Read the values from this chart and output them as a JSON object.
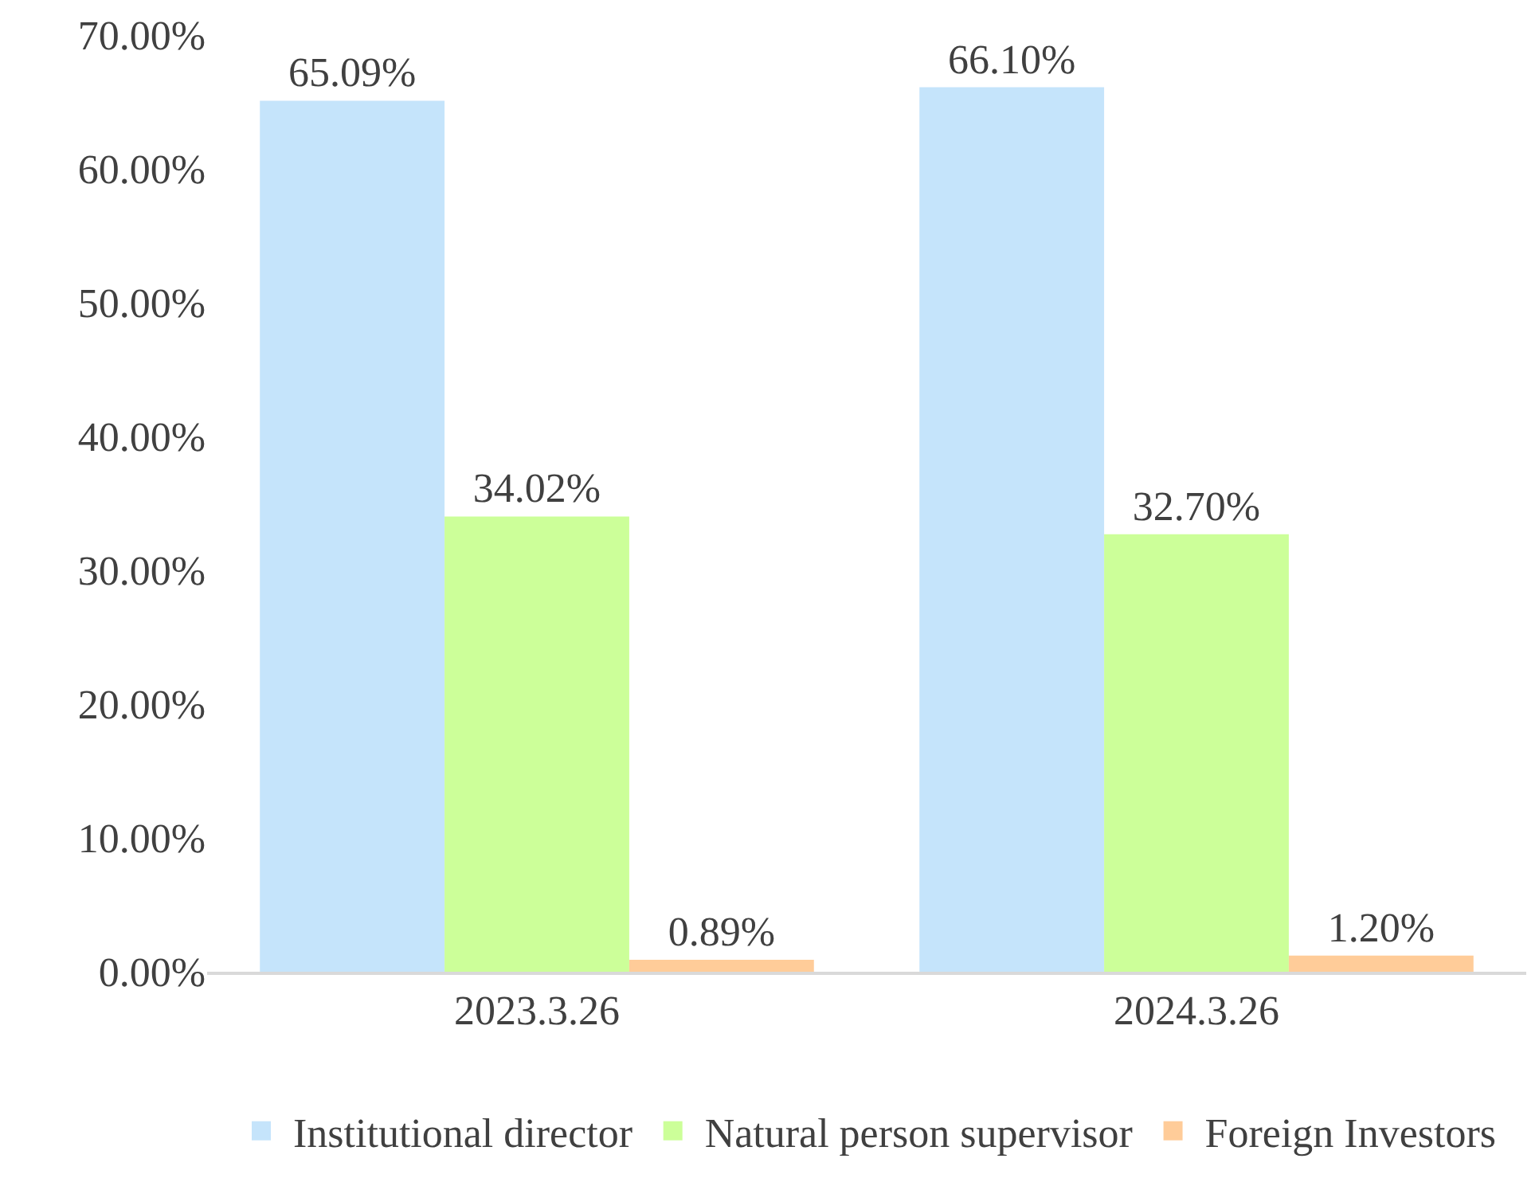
{
  "chart_data": {
    "type": "bar",
    "categories": [
      "2023.3.26",
      "2024.3.26"
    ],
    "series": [
      {
        "name": "Institutional director",
        "color": "#c5e4fb",
        "values": [
          65.09,
          66.1
        ],
        "value_labels": [
          "65.09%",
          "66.10%"
        ]
      },
      {
        "name": "Natural person supervisor",
        "color": "#ccff99",
        "values": [
          34.02,
          32.7
        ],
        "value_labels": [
          "34.02%",
          "32.70%"
        ]
      },
      {
        "name": "Foreign Investors",
        "color": "#ffcc99",
        "values": [
          0.89,
          1.2
        ],
        "value_labels": [
          "0.89%",
          "1.20%"
        ]
      }
    ],
    "ylim": [
      0,
      70
    ],
    "yticks": [
      {
        "value": 0,
        "label": "0.00%"
      },
      {
        "value": 10,
        "label": "10.00%"
      },
      {
        "value": 20,
        "label": "20.00%"
      },
      {
        "value": 30,
        "label": "30.00%"
      },
      {
        "value": 40,
        "label": "40.00%"
      },
      {
        "value": 50,
        "label": "50.00%"
      },
      {
        "value": 60,
        "label": "60.00%"
      },
      {
        "value": 70,
        "label": "70.00%"
      }
    ],
    "grid": false,
    "legend": "bottom"
  }
}
